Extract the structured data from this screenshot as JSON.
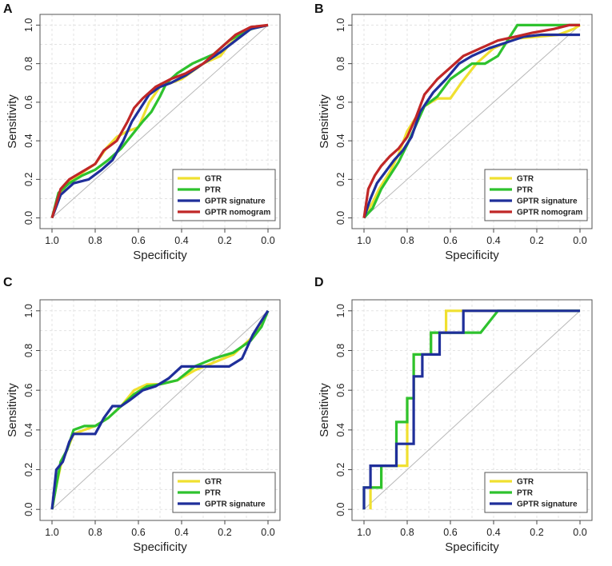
{
  "colors": {
    "GTR": "#f0e030",
    "PTR": "#2ec22e",
    "GPTR signature": "#1f2f9a",
    "GPTR nomogram": "#c02727"
  },
  "chart_data": [
    {
      "panel": "A",
      "type": "line",
      "xlabel": "Specificity",
      "ylabel": "Sensitivity",
      "xlim": [
        1.0,
        0.0
      ],
      "ylim": [
        0.0,
        1.0
      ],
      "xticks": [
        "1.0",
        "0.8",
        "0.6",
        "0.4",
        "0.2",
        "0.0"
      ],
      "yticks": [
        "0.0",
        "0.2",
        "0.4",
        "0.6",
        "0.8",
        "1.0"
      ],
      "grid": true,
      "legend_position": "bottom-right",
      "series": [
        {
          "name": "GTR",
          "x": [
            1.0,
            0.97,
            0.93,
            0.88,
            0.8,
            0.75,
            0.7,
            0.65,
            0.6,
            0.55,
            0.5,
            0.45,
            0.4,
            0.3,
            0.22,
            0.18,
            0.12,
            0.08,
            0.0
          ],
          "y": [
            0.0,
            0.1,
            0.18,
            0.22,
            0.28,
            0.36,
            0.42,
            0.45,
            0.47,
            0.6,
            0.68,
            0.7,
            0.72,
            0.8,
            0.84,
            0.9,
            0.95,
            0.98,
            1.0
          ]
        },
        {
          "name": "PTR",
          "x": [
            1.0,
            0.97,
            0.92,
            0.86,
            0.8,
            0.74,
            0.68,
            0.63,
            0.58,
            0.54,
            0.5,
            0.47,
            0.42,
            0.35,
            0.25,
            0.18,
            0.1,
            0.05,
            0.0
          ],
          "y": [
            0.0,
            0.13,
            0.18,
            0.22,
            0.25,
            0.3,
            0.36,
            0.43,
            0.5,
            0.55,
            0.63,
            0.7,
            0.75,
            0.8,
            0.85,
            0.92,
            0.97,
            0.99,
            1.0
          ]
        },
        {
          "name": "GPTR signature",
          "x": [
            1.0,
            0.96,
            0.9,
            0.83,
            0.77,
            0.72,
            0.67,
            0.63,
            0.59,
            0.55,
            0.5,
            0.45,
            0.38,
            0.3,
            0.22,
            0.15,
            0.08,
            0.0
          ],
          "y": [
            0.0,
            0.12,
            0.18,
            0.2,
            0.25,
            0.3,
            0.4,
            0.5,
            0.57,
            0.64,
            0.68,
            0.7,
            0.74,
            0.8,
            0.86,
            0.92,
            0.98,
            1.0
          ]
        },
        {
          "name": "GPTR nomogram",
          "x": [
            1.0,
            0.96,
            0.92,
            0.86,
            0.8,
            0.76,
            0.7,
            0.65,
            0.62,
            0.58,
            0.52,
            0.45,
            0.38,
            0.3,
            0.22,
            0.15,
            0.08,
            0.0
          ],
          "y": [
            0.0,
            0.15,
            0.2,
            0.24,
            0.28,
            0.35,
            0.4,
            0.5,
            0.57,
            0.62,
            0.68,
            0.72,
            0.75,
            0.8,
            0.88,
            0.95,
            0.99,
            1.0
          ]
        }
      ]
    },
    {
      "panel": "B",
      "type": "line",
      "xlabel": "Specificity",
      "ylabel": "Sensitivity",
      "xlim": [
        1.0,
        0.0
      ],
      "ylim": [
        0.0,
        1.0
      ],
      "xticks": [
        "1.0",
        "0.8",
        "0.6",
        "0.4",
        "0.2",
        "0.0"
      ],
      "yticks": [
        "0.0",
        "0.2",
        "0.4",
        "0.6",
        "0.8",
        "1.0"
      ],
      "grid": true,
      "legend_position": "bottom-right",
      "series": [
        {
          "name": "GTR",
          "x": [
            1.0,
            0.96,
            0.93,
            0.88,
            0.84,
            0.8,
            0.76,
            0.72,
            0.66,
            0.6,
            0.55,
            0.48,
            0.4,
            0.3,
            0.2,
            0.1,
            0.03,
            0.0
          ],
          "y": [
            0.0,
            0.08,
            0.15,
            0.24,
            0.33,
            0.45,
            0.52,
            0.58,
            0.62,
            0.62,
            0.7,
            0.8,
            0.88,
            0.93,
            0.94,
            0.95,
            0.98,
            1.0
          ]
        },
        {
          "name": "PTR",
          "x": [
            1.0,
            0.96,
            0.92,
            0.88,
            0.84,
            0.8,
            0.76,
            0.72,
            0.66,
            0.6,
            0.55,
            0.5,
            0.44,
            0.38,
            0.33,
            0.29,
            0.2,
            0.1,
            0.0
          ],
          "y": [
            0.0,
            0.05,
            0.15,
            0.22,
            0.29,
            0.38,
            0.48,
            0.58,
            0.63,
            0.72,
            0.76,
            0.8,
            0.8,
            0.84,
            0.93,
            1.0,
            1.0,
            1.0,
            1.0
          ]
        },
        {
          "name": "GPTR signature",
          "x": [
            1.0,
            0.97,
            0.94,
            0.9,
            0.86,
            0.82,
            0.78,
            0.74,
            0.68,
            0.62,
            0.56,
            0.5,
            0.42,
            0.34,
            0.26,
            0.18,
            0.0
          ],
          "y": [
            0.0,
            0.1,
            0.18,
            0.24,
            0.3,
            0.35,
            0.42,
            0.55,
            0.65,
            0.72,
            0.8,
            0.84,
            0.88,
            0.91,
            0.94,
            0.95,
            0.95
          ]
        },
        {
          "name": "GPTR nomogram",
          "x": [
            1.0,
            0.98,
            0.95,
            0.92,
            0.88,
            0.84,
            0.8,
            0.76,
            0.72,
            0.66,
            0.6,
            0.54,
            0.46,
            0.38,
            0.3,
            0.22,
            0.12,
            0.05,
            0.0
          ],
          "y": [
            0.0,
            0.15,
            0.22,
            0.27,
            0.32,
            0.36,
            0.42,
            0.52,
            0.64,
            0.72,
            0.78,
            0.84,
            0.88,
            0.92,
            0.94,
            0.96,
            0.98,
            1.0,
            1.0
          ]
        }
      ]
    },
    {
      "panel": "C",
      "type": "line",
      "xlabel": "Specificity",
      "ylabel": "Sensitivity",
      "xlim": [
        1.0,
        0.0
      ],
      "ylim": [
        0.0,
        1.0
      ],
      "xticks": [
        "1.0",
        "0.8",
        "0.6",
        "0.4",
        "0.2",
        "0.0"
      ],
      "yticks": [
        "0.0",
        "0.2",
        "0.4",
        "0.6",
        "0.8",
        "1.0"
      ],
      "grid": true,
      "legend_position": "bottom-right",
      "series": [
        {
          "name": "GTR",
          "x": [
            1.0,
            0.98,
            0.96,
            0.93,
            0.9,
            0.85,
            0.8,
            0.74,
            0.68,
            0.62,
            0.56,
            0.5,
            0.42,
            0.34,
            0.25,
            0.16,
            0.08,
            0.03,
            0.0
          ],
          "y": [
            0.0,
            0.12,
            0.22,
            0.3,
            0.38,
            0.4,
            0.42,
            0.46,
            0.52,
            0.6,
            0.63,
            0.63,
            0.65,
            0.7,
            0.74,
            0.78,
            0.86,
            0.93,
            1.0
          ]
        },
        {
          "name": "PTR",
          "x": [
            1.0,
            0.98,
            0.96,
            0.93,
            0.9,
            0.85,
            0.8,
            0.74,
            0.68,
            0.62,
            0.56,
            0.5,
            0.42,
            0.34,
            0.25,
            0.16,
            0.08,
            0.03,
            0.0
          ],
          "y": [
            0.0,
            0.12,
            0.24,
            0.3,
            0.4,
            0.42,
            0.42,
            0.46,
            0.52,
            0.58,
            0.62,
            0.63,
            0.65,
            0.72,
            0.76,
            0.79,
            0.85,
            0.92,
            1.0
          ]
        },
        {
          "name": "GPTR signature",
          "x": [
            1.0,
            0.98,
            0.95,
            0.92,
            0.9,
            0.85,
            0.8,
            0.76,
            0.72,
            0.68,
            0.64,
            0.58,
            0.52,
            0.46,
            0.4,
            0.33,
            0.26,
            0.18,
            0.12,
            0.07,
            0.03,
            0.0
          ],
          "y": [
            0.0,
            0.2,
            0.24,
            0.34,
            0.38,
            0.38,
            0.38,
            0.46,
            0.52,
            0.52,
            0.55,
            0.6,
            0.62,
            0.66,
            0.72,
            0.72,
            0.72,
            0.72,
            0.76,
            0.88,
            0.95,
            1.0
          ]
        }
      ]
    },
    {
      "panel": "D",
      "type": "line",
      "xlabel": "Specificity",
      "ylabel": "Sensitivity",
      "xlim": [
        1.0,
        0.0
      ],
      "ylim": [
        0.0,
        1.0
      ],
      "xticks": [
        "1.0",
        "0.8",
        "0.6",
        "0.4",
        "0.2",
        "0.0"
      ],
      "yticks": [
        "0.0",
        "0.2",
        "0.4",
        "0.6",
        "0.8",
        "1.0"
      ],
      "grid": true,
      "legend_position": "bottom-right",
      "series": [
        {
          "name": "GTR",
          "x": [
            0.97,
            0.97,
            0.92,
            0.92,
            0.8,
            0.8,
            0.77,
            0.77,
            0.69,
            0.69,
            0.62,
            0.62,
            0.0
          ],
          "y": [
            0.0,
            0.11,
            0.11,
            0.22,
            0.22,
            0.56,
            0.56,
            0.78,
            0.78,
            0.89,
            0.89,
            1.0,
            1.0
          ]
        },
        {
          "name": "PTR",
          "x": [
            1.0,
            1.0,
            0.92,
            0.92,
            0.85,
            0.85,
            0.8,
            0.8,
            0.77,
            0.77,
            0.69,
            0.69,
            0.46,
            0.46,
            0.38,
            0.36,
            0.0
          ],
          "y": [
            0.0,
            0.11,
            0.11,
            0.22,
            0.22,
            0.44,
            0.44,
            0.56,
            0.56,
            0.78,
            0.78,
            0.89,
            0.89,
            0.89,
            1.0,
            1.0,
            1.0
          ]
        },
        {
          "name": "GPTR signature",
          "x": [
            1.0,
            1.0,
            0.97,
            0.97,
            0.85,
            0.85,
            0.77,
            0.77,
            0.73,
            0.73,
            0.65,
            0.65,
            0.54,
            0.54,
            0.0
          ],
          "y": [
            0.0,
            0.11,
            0.11,
            0.22,
            0.22,
            0.33,
            0.33,
            0.67,
            0.67,
            0.78,
            0.78,
            0.89,
            0.89,
            1.0,
            1.0
          ]
        }
      ]
    }
  ]
}
